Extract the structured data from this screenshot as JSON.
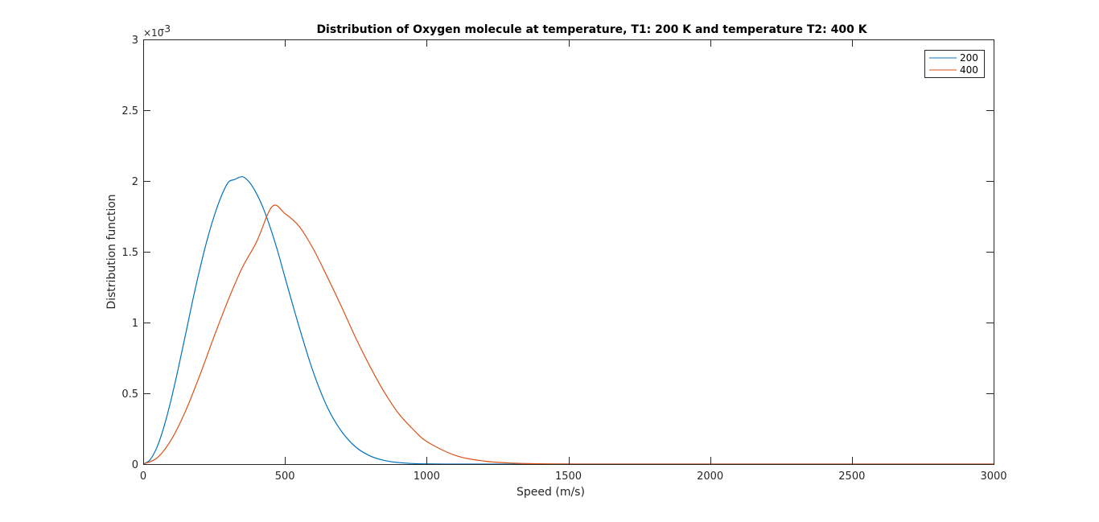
{
  "chart_data": {
    "type": "line",
    "title": "Distribution of Oxygen molecule at temperature, T1: 200 K and temperature T2: 400 K",
    "xlabel": "Speed (m/s)",
    "ylabel": "Distribution function",
    "xlim": [
      0,
      3000
    ],
    "ylim": [
      0,
      0.003
    ],
    "y_exponent_label": {
      "base": "×10",
      "exponent": "-3"
    },
    "x_ticks": [
      0,
      500,
      1000,
      1500,
      2000,
      2500,
      3000
    ],
    "x_tick_labels": [
      "0",
      "500",
      "1000",
      "1500",
      "2000",
      "2500",
      "3000"
    ],
    "y_ticks": [
      0,
      0.0005,
      0.001,
      0.0015,
      0.002,
      0.0025,
      0.003
    ],
    "y_tick_labels": [
      "0",
      "0.5",
      "1",
      "1.5",
      "2",
      "2.5",
      "3"
    ],
    "grid": false,
    "legend_position": "top-right",
    "legend": [
      "200",
      "400"
    ],
    "series": [
      {
        "name": "200",
        "color": "#0072BD",
        "x": [
          0,
          25,
          50,
          75,
          100,
          125,
          150,
          175,
          200,
          225,
          250,
          275,
          300,
          322,
          350,
          375,
          400,
          425,
          450,
          475,
          500,
          550,
          600,
          650,
          700,
          750,
          800,
          850,
          900,
          950,
          1000,
          1100,
          1200,
          1300,
          1400,
          1500,
          2000,
          2500,
          3000
        ],
        "values": [
          0,
          3.23e-05,
          0.000126,
          0.000276,
          0.000468,
          0.000688,
          0.000922,
          0.00116,
          0.00138,
          0.00158,
          0.00175,
          0.00189,
          0.00199,
          0.00201,
          0.00203,
          0.00199,
          0.00191,
          0.0018,
          0.00166,
          0.0015,
          0.00132,
          0.00097,
          0.00065,
          0.0004,
          0.00023,
          0.00012,
          5.8e-05,
          2.6e-05,
          1.1e-05,
          4e-06,
          1.5e-06,
          1.5e-07,
          1e-08,
          0,
          0,
          0,
          0,
          0,
          0
        ]
      },
      {
        "name": "400",
        "color": "#D95319",
        "x": [
          0,
          50,
          100,
          150,
          200,
          250,
          300,
          350,
          400,
          455,
          500,
          550,
          600,
          650,
          700,
          750,
          800,
          850,
          900,
          950,
          1000,
          1100,
          1200,
          1300,
          1400,
          1500,
          1600,
          2000,
          2500,
          3000
        ],
        "values": [
          0,
          4.55e-05,
          0.000176,
          0.000378,
          0.000629,
          0.000901,
          0.00116,
          0.00139,
          0.00157,
          0.00182,
          0.00177,
          0.00168,
          0.00152,
          0.00132,
          0.00111,
          0.00089,
          0.00069,
          0.00051,
          0.00036,
          0.00025,
          0.00016,
          6.2e-05,
          2.2e-05,
          7e-06,
          2e-06,
          5e-07,
          1e-07,
          0,
          0,
          0
        ]
      }
    ]
  }
}
